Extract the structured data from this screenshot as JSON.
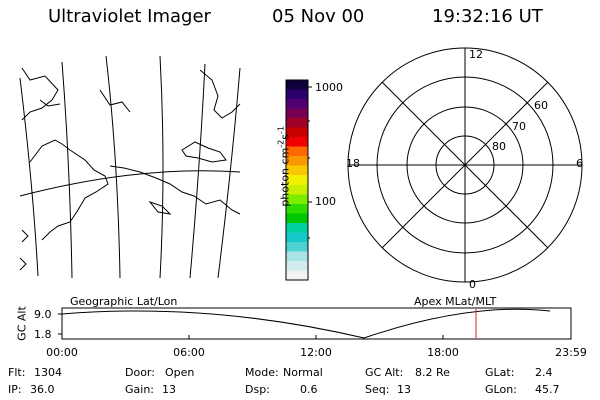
{
  "header": {
    "instrument": "Ultraviolet Imager",
    "date": "05 Nov 00",
    "time": "19:32:16 UT"
  },
  "colorbar": {
    "unit_prefix": "photon cm",
    "unit_exp1": "-2",
    "unit_mid": "s",
    "unit_exp2": "-1",
    "tick_high": "1000",
    "tick_low": "100",
    "stops": [
      "#f2f2f2",
      "#d0ecec",
      "#a8e4e4",
      "#4fd2d2",
      "#18c7c7",
      "#00d0a0",
      "#00c800",
      "#30dc00",
      "#7ded00",
      "#c8f000",
      "#f0f000",
      "#f8c800",
      "#f89800",
      "#ff6a00",
      "#f00000",
      "#c80000",
      "#a00028",
      "#780050",
      "#500070",
      "#2a006a",
      "#10003a"
    ]
  },
  "polar_plot": {
    "label_top": "12",
    "label_bottom": "0",
    "label_left": "18",
    "label_right": "6",
    "ring_labels": [
      "60",
      "70",
      "80"
    ]
  },
  "coord_labels": {
    "left": "Geographic Lat/Lon",
    "right": "Apex MLat/MLT"
  },
  "altitude_panel": {
    "axis_label": "GC Alt",
    "y_ticks": [
      "9.0",
      "1.8"
    ],
    "time_ticks": [
      "00:00",
      "06:00",
      "12:00",
      "18:00",
      "23:59"
    ],
    "marker_color": "#e02020"
  },
  "info": {
    "row1": [
      {
        "label": "Flt:",
        "value": "1304"
      },
      {
        "label": "Door:",
        "value": "Open"
      },
      {
        "label": "Mode:",
        "value": "Normal"
      },
      {
        "label": "GC Alt:",
        "value": "8.2 Re"
      },
      {
        "label": "GLat:",
        "value": "2.4"
      }
    ],
    "row2": [
      {
        "label": "IP:",
        "value": "36.0"
      },
      {
        "label": "Gain:",
        "value": "13"
      },
      {
        "label": "Dsp:",
        "value": "0.6"
      },
      {
        "label": "Seq:",
        "value": "13"
      },
      {
        "label": "GLon:",
        "value": "45.7"
      }
    ]
  }
}
